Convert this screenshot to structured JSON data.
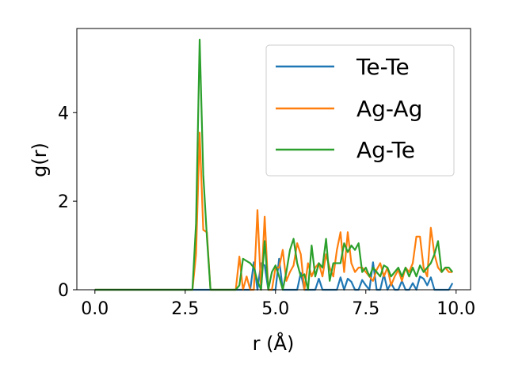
{
  "chart_data": {
    "type": "line",
    "title": "",
    "xlabel": "r (Å)",
    "ylabel": "g(r)",
    "xlim": [
      -0.5,
      10.4
    ],
    "ylim": [
      0,
      5.9
    ],
    "x_ticks": [
      0.0,
      2.5,
      5.0,
      7.5,
      10.0
    ],
    "x_tick_labels": [
      "0.0",
      "2.5",
      "5.0",
      "7.5",
      "10.0"
    ],
    "y_ticks": [
      0,
      2,
      4
    ],
    "y_tick_labels": [
      "0",
      "2",
      "4"
    ],
    "grid": false,
    "legend_position": "top-right",
    "x": [
      0.0,
      0.1,
      0.2,
      0.3,
      0.4,
      0.5,
      0.6,
      0.7,
      0.8,
      0.9,
      1.0,
      1.1,
      1.2,
      1.3,
      1.4,
      1.5,
      1.6,
      1.7,
      1.8,
      1.9,
      2.0,
      2.1,
      2.2,
      2.3,
      2.4,
      2.5,
      2.6,
      2.7,
      2.8,
      2.9,
      3.0,
      3.1,
      3.2,
      3.3,
      3.4,
      3.5,
      3.6,
      3.7,
      3.8,
      3.9,
      4.0,
      4.1,
      4.2,
      4.3,
      4.4,
      4.5,
      4.6,
      4.7,
      4.8,
      4.9,
      5.0,
      5.1,
      5.2,
      5.3,
      5.4,
      5.5,
      5.6,
      5.7,
      5.8,
      5.9,
      6.0,
      6.1,
      6.2,
      6.3,
      6.4,
      6.5,
      6.6,
      6.7,
      6.8,
      6.9,
      7.0,
      7.1,
      7.2,
      7.3,
      7.4,
      7.5,
      7.6,
      7.7,
      7.8,
      7.9,
      8.0,
      8.1,
      8.2,
      8.3,
      8.4,
      8.5,
      8.6,
      8.7,
      8.8,
      8.9,
      9.0,
      9.1,
      9.2,
      9.3,
      9.4,
      9.5,
      9.6,
      9.7,
      9.8,
      9.9
    ],
    "series": [
      {
        "name": "Te-Te",
        "color": "#1f77b4",
        "values": [
          0,
          0,
          0,
          0,
          0,
          0,
          0,
          0,
          0,
          0,
          0,
          0,
          0,
          0,
          0,
          0,
          0,
          0,
          0,
          0,
          0,
          0,
          0,
          0,
          0,
          0,
          0,
          0,
          0,
          0,
          0,
          0,
          0,
          0,
          0,
          0,
          0,
          0,
          0,
          0,
          0,
          0,
          0,
          0,
          0.62,
          0,
          0.6,
          0.55,
          0,
          0,
          0,
          0.7,
          0,
          0,
          0,
          0,
          0,
          0.38,
          0,
          0,
          0,
          0,
          0.25,
          0,
          0,
          0,
          0,
          0,
          0.28,
          0,
          0.25,
          0.18,
          0,
          0,
          0.22,
          0.1,
          0,
          0.62,
          0,
          0,
          0.35,
          0,
          0.15,
          0,
          0,
          0.2,
          0,
          0,
          0.15,
          0,
          0.3,
          0.25,
          0.1,
          0.28,
          0,
          0,
          0,
          0,
          0,
          0.15
        ]
      },
      {
        "name": "Ag-Ag",
        "color": "#ff7f0e",
        "values": [
          0,
          0,
          0,
          0,
          0,
          0,
          0,
          0,
          0,
          0,
          0,
          0,
          0,
          0,
          0,
          0,
          0,
          0,
          0,
          0,
          0,
          0,
          0,
          0,
          0,
          0,
          0,
          0,
          0.8,
          3.55,
          1.35,
          1.3,
          0,
          0,
          0,
          0,
          0,
          0,
          0,
          0,
          0.75,
          0,
          0.3,
          0,
          0,
          1.8,
          0,
          1.65,
          0,
          0,
          0.5,
          0.5,
          0.9,
          0.2,
          0.4,
          0.55,
          1.05,
          0.8,
          0,
          0.6,
          0.3,
          0.5,
          0.6,
          0.3,
          0.8,
          0.5,
          0.3,
          0.9,
          1.3,
          0.4,
          1.3,
          0.6,
          0.4,
          0.5,
          0.5,
          0.4,
          0.3,
          0.2,
          0.45,
          0.6,
          0.3,
          0.5,
          0.1,
          0.3,
          0.45,
          0.2,
          0.5,
          0.4,
          0.6,
          1.2,
          1.2,
          0.5,
          0.3,
          1.4,
          0.8,
          0.5,
          0.4,
          0.5,
          0.4,
          0.4
        ]
      },
      {
        "name": "Ag-Te",
        "color": "#2ca02c",
        "values": [
          0,
          0,
          0,
          0,
          0,
          0,
          0,
          0,
          0,
          0,
          0,
          0,
          0,
          0,
          0,
          0,
          0,
          0,
          0,
          0,
          0,
          0,
          0,
          0,
          0,
          0,
          0,
          0,
          1.5,
          5.65,
          2.6,
          1.2,
          0,
          0,
          0,
          0,
          0,
          0,
          0,
          0,
          0.1,
          0.7,
          0.65,
          0.6,
          0.5,
          0.2,
          0,
          1.1,
          0,
          0.4,
          0.55,
          0.3,
          0,
          0.4,
          0.9,
          1.15,
          0.6,
          0.3,
          0.35,
          0,
          1.0,
          0.3,
          0.6,
          0.5,
          1.15,
          0.2,
          0.6,
          0.6,
          0.6,
          1.05,
          0.85,
          1.0,
          0.9,
          1.05,
          0.4,
          0.5,
          0.3,
          0.5,
          0.4,
          0.3,
          0.55,
          0.5,
          0.3,
          0.4,
          0.5,
          0.3,
          0.5,
          0.3,
          0.5,
          0.3,
          0.55,
          0.4,
          0.5,
          0.6,
          0.8,
          1.1,
          0.4,
          0.5,
          0.5,
          0.4
        ]
      }
    ]
  }
}
